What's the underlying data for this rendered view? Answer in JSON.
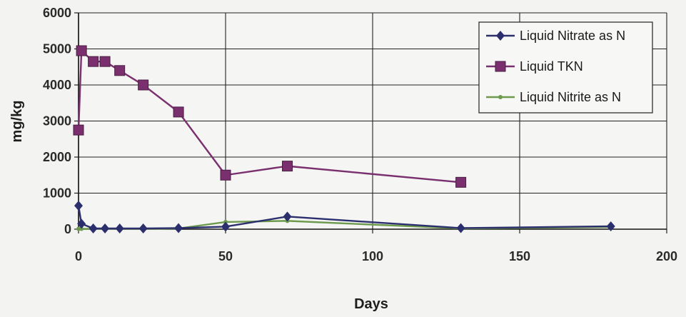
{
  "chart_data": {
    "type": "line",
    "title": "",
    "xlabel": "Days",
    "ylabel": "mg/kg",
    "xlim": [
      0,
      200
    ],
    "ylim": [
      0,
      6000
    ],
    "xticks": [
      0,
      50,
      100,
      150,
      200
    ],
    "yticks": [
      0,
      1000,
      2000,
      3000,
      4000,
      5000,
      6000
    ],
    "grid": true,
    "legend_position": "top-right",
    "series": [
      {
        "name": "Liquid Nitrate as N",
        "marker": "diamond",
        "color": "#2c2f6e",
        "x": [
          0,
          1,
          5,
          9,
          14,
          22,
          34,
          50,
          71,
          130,
          181
        ],
        "y": [
          650,
          150,
          20,
          20,
          20,
          20,
          30,
          70,
          350,
          30,
          80
        ]
      },
      {
        "name": "Liquid TKN",
        "marker": "square",
        "color": "#7a2f6e",
        "x": [
          0,
          1,
          5,
          9,
          14,
          22,
          34,
          50,
          71,
          130
        ],
        "y": [
          2750,
          4950,
          4650,
          4650,
          4400,
          4000,
          3250,
          1500,
          1750,
          1300
        ]
      },
      {
        "name": "Liquid Nitrite as N",
        "marker": "dot",
        "color": "#6e9a4e",
        "x": [
          0,
          1,
          5,
          9,
          14,
          22,
          34,
          50,
          71,
          130,
          181
        ],
        "y": [
          10,
          10,
          10,
          10,
          10,
          10,
          20,
          200,
          230,
          20,
          60
        ]
      }
    ]
  }
}
